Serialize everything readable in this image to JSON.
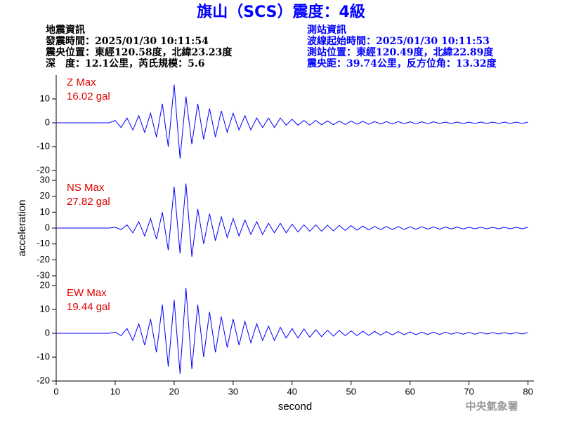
{
  "header": {
    "title": "旗山（SCS）震度：4級",
    "left": [
      "地震資訊",
      "發震時間：2025/01/30 10:11:54",
      "震央位置：東經120.58度，北緯23.23度",
      "深　度：12.1公里，芮氏規模：5.6"
    ],
    "right": [
      "測站資訊",
      "波線起始時間：2025/01/30 10:11:53",
      "測站位置：東經120.49度，北緯22.89度",
      "震央距：39.74公里，反方位角：13.32度"
    ]
  },
  "footer": "中央氣象署",
  "chart_data": [
    {
      "type": "line",
      "annotations": [
        "Z Max",
        "16.02 gal"
      ],
      "color": "#0000ff",
      "x": [
        0,
        1,
        2,
        3,
        4,
        5,
        6,
        7,
        8,
        9,
        10,
        11,
        12,
        13,
        14,
        15,
        16,
        17,
        18,
        19,
        20,
        21,
        22,
        23,
        24,
        25,
        26,
        27,
        28,
        29,
        30,
        31,
        32,
        33,
        34,
        35,
        36,
        37,
        38,
        39,
        40,
        41,
        42,
        43,
        44,
        45,
        46,
        47,
        48,
        49,
        50,
        51,
        52,
        53,
        54,
        55,
        56,
        57,
        58,
        59,
        60,
        61,
        62,
        63,
        64,
        65,
        66,
        67,
        68,
        69,
        70,
        71,
        72,
        73,
        74,
        75,
        76,
        77,
        78,
        79,
        80
      ],
      "values": [
        0,
        0,
        0,
        0,
        0,
        0,
        0,
        0,
        0,
        0,
        1,
        -2,
        2,
        -3,
        3,
        -4,
        4,
        -6,
        8,
        -10,
        16,
        -15,
        11,
        -9,
        8,
        -7,
        6,
        -6,
        5,
        -4,
        4,
        -3,
        3,
        -3,
        2,
        -2,
        2,
        -2,
        2,
        -1,
        1.5,
        -1,
        1,
        -1,
        1,
        -0.8,
        0.8,
        -0.8,
        0.7,
        -0.7,
        0.7,
        -0.6,
        0.6,
        -0.6,
        0.5,
        -0.5,
        0.5,
        -0.5,
        0.5,
        -0.4,
        0.4,
        -0.4,
        0.4,
        -0.4,
        0.4,
        -0.3,
        0.3,
        -0.3,
        0.3,
        -0.3,
        0.3,
        -0.3,
        0.3,
        -0.3,
        0.3,
        -0.3,
        0.3,
        -0.3,
        0.3,
        -0.3,
        0.3
      ],
      "ylim": [
        -20,
        20
      ],
      "yticks": [
        10,
        0,
        -10,
        -20
      ]
    },
    {
      "type": "line",
      "annotations": [
        "NS Max",
        "27.82 gal"
      ],
      "color": "#0000ff",
      "ylabel": "acceleration",
      "x": [
        0,
        1,
        2,
        3,
        4,
        5,
        6,
        7,
        8,
        9,
        10,
        11,
        12,
        13,
        14,
        15,
        16,
        17,
        18,
        19,
        20,
        21,
        22,
        23,
        24,
        25,
        26,
        27,
        28,
        29,
        30,
        31,
        32,
        33,
        34,
        35,
        36,
        37,
        38,
        39,
        40,
        41,
        42,
        43,
        44,
        45,
        46,
        47,
        48,
        49,
        50,
        51,
        52,
        53,
        54,
        55,
        56,
        57,
        58,
        59,
        60,
        61,
        62,
        63,
        64,
        65,
        66,
        67,
        68,
        69,
        70,
        71,
        72,
        73,
        74,
        75,
        76,
        77,
        78,
        79,
        80
      ],
      "values": [
        0,
        0,
        0,
        0,
        0,
        0,
        0,
        0,
        0,
        0,
        0.5,
        -1,
        2,
        -3,
        4,
        -5,
        6,
        -7,
        10,
        -14,
        26,
        -16,
        28,
        -18,
        12,
        -10,
        9,
        -8,
        7,
        -6,
        6,
        -5,
        5,
        -4,
        4,
        -4,
        3,
        -3,
        3,
        -3,
        2.5,
        -2.5,
        2,
        -2,
        2,
        -2,
        1.8,
        -1.8,
        1.6,
        -1.5,
        1.5,
        -1.3,
        1.2,
        -1.2,
        1,
        -1,
        1,
        -1,
        0.9,
        -0.9,
        0.8,
        -0.8,
        0.8,
        -0.7,
        0.7,
        -0.7,
        0.6,
        -0.6,
        0.6,
        -0.6,
        0.5,
        -0.5,
        0.5,
        -0.5,
        0.5,
        -0.5,
        0.5,
        -0.5,
        0.5,
        -0.5,
        0.5
      ],
      "ylim": [
        -30,
        30
      ],
      "yticks": [
        30,
        20,
        10,
        0,
        -10,
        -20,
        -30
      ]
    },
    {
      "type": "line",
      "annotations": [
        "EW Max",
        "19.44 gal"
      ],
      "color": "#0000ff",
      "xlabel": "second",
      "x": [
        0,
        1,
        2,
        3,
        4,
        5,
        6,
        7,
        8,
        9,
        10,
        11,
        12,
        13,
        14,
        15,
        16,
        17,
        18,
        19,
        20,
        21,
        22,
        23,
        24,
        25,
        26,
        27,
        28,
        29,
        30,
        31,
        32,
        33,
        34,
        35,
        36,
        37,
        38,
        39,
        40,
        41,
        42,
        43,
        44,
        45,
        46,
        47,
        48,
        49,
        50,
        51,
        52,
        53,
        54,
        55,
        56,
        57,
        58,
        59,
        60,
        61,
        62,
        63,
        64,
        65,
        66,
        67,
        68,
        69,
        70,
        71,
        72,
        73,
        74,
        75,
        76,
        77,
        78,
        79,
        80
      ],
      "values": [
        0,
        0,
        0,
        0,
        0,
        0,
        0,
        0,
        0,
        0,
        0.5,
        -1,
        2,
        -3,
        4,
        -5,
        6,
        -8,
        12,
        -14,
        14,
        -17,
        19,
        -15,
        12,
        -10,
        9,
        -8,
        7,
        -6,
        6,
        -5,
        5,
        -4,
        4,
        -3,
        3,
        -3,
        2.5,
        -2,
        2,
        -2,
        1.8,
        -1.6,
        1.5,
        -1.4,
        1.3,
        -1.2,
        1.2,
        -1,
        1,
        -1,
        0.9,
        -0.9,
        0.8,
        -0.8,
        0.7,
        -0.7,
        0.7,
        -0.6,
        0.6,
        -0.6,
        0.5,
        -0.5,
        0.5,
        -0.5,
        0.5,
        -0.4,
        0.4,
        -0.4,
        0.4,
        -0.4,
        0.4,
        -0.3,
        0.3,
        -0.3,
        0.3,
        -0.3,
        0.3,
        -0.3,
        0.3
      ],
      "ylim": [
        -20,
        20
      ],
      "yticks": [
        20,
        10,
        0,
        -10,
        -20
      ],
      "xlim": [
        0,
        81
      ],
      "xticks": [
        0,
        10,
        20,
        30,
        40,
        50,
        60,
        70,
        80
      ]
    }
  ]
}
